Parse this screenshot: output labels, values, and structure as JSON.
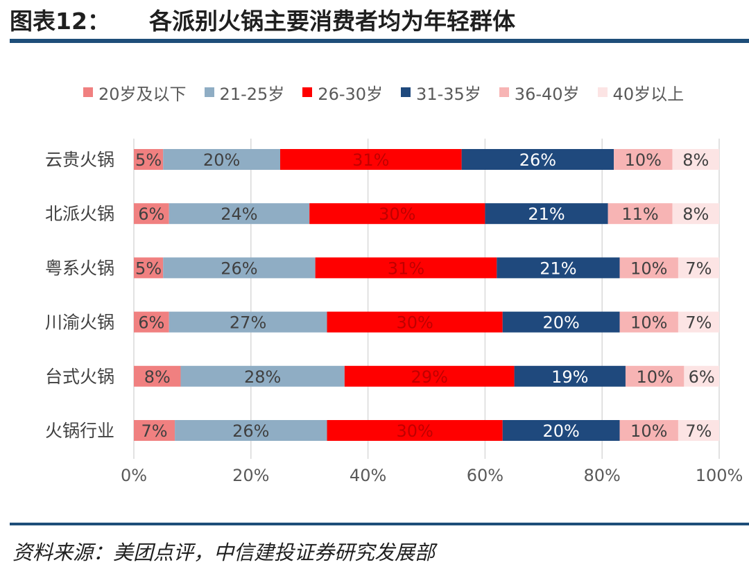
{
  "figure": {
    "number": "图表12：",
    "title": "各派别火锅主要消费者均为年轻群体",
    "source": "资料来源：美团点评，中信建投证券研究发展部"
  },
  "chart_data": {
    "type": "bar",
    "orientation": "horizontal",
    "stacked": "percent",
    "categories": [
      "云贵火锅",
      "北派火锅",
      "粤系火锅",
      "川渝火锅",
      "台式火锅",
      "火锅行业"
    ],
    "series": [
      {
        "name": "20岁及以下",
        "color": "#f08080",
        "label_color": "#404040",
        "values": [
          5,
          6,
          5,
          6,
          8,
          7
        ]
      },
      {
        "name": "21-25岁",
        "color": "#8fadc4",
        "label_color": "#404040",
        "values": [
          20,
          24,
          26,
          27,
          28,
          26
        ]
      },
      {
        "name": "26-30岁",
        "color": "#ff0000",
        "label_color": "#c00000",
        "values": [
          31,
          30,
          31,
          30,
          29,
          30
        ]
      },
      {
        "name": "31-35岁",
        "color": "#1f497d",
        "label_color": "#ffffff",
        "values": [
          26,
          21,
          21,
          20,
          19,
          20
        ]
      },
      {
        "name": "36-40岁",
        "color": "#f7b4b4",
        "label_color": "#404040",
        "values": [
          10,
          11,
          10,
          10,
          10,
          10
        ]
      },
      {
        "name": "40岁以上",
        "color": "#fce4e4",
        "label_color": "#404040",
        "values": [
          8,
          8,
          7,
          7,
          6,
          7
        ]
      }
    ],
    "data_labels_format": "{v}%",
    "xlim": [
      0,
      100
    ],
    "xticks": [
      0,
      20,
      40,
      60,
      80,
      100
    ],
    "xtick_labels": [
      "0%",
      "20%",
      "40%",
      "60%",
      "80%",
      "100%"
    ],
    "grid": true,
    "legend_position": "top"
  }
}
